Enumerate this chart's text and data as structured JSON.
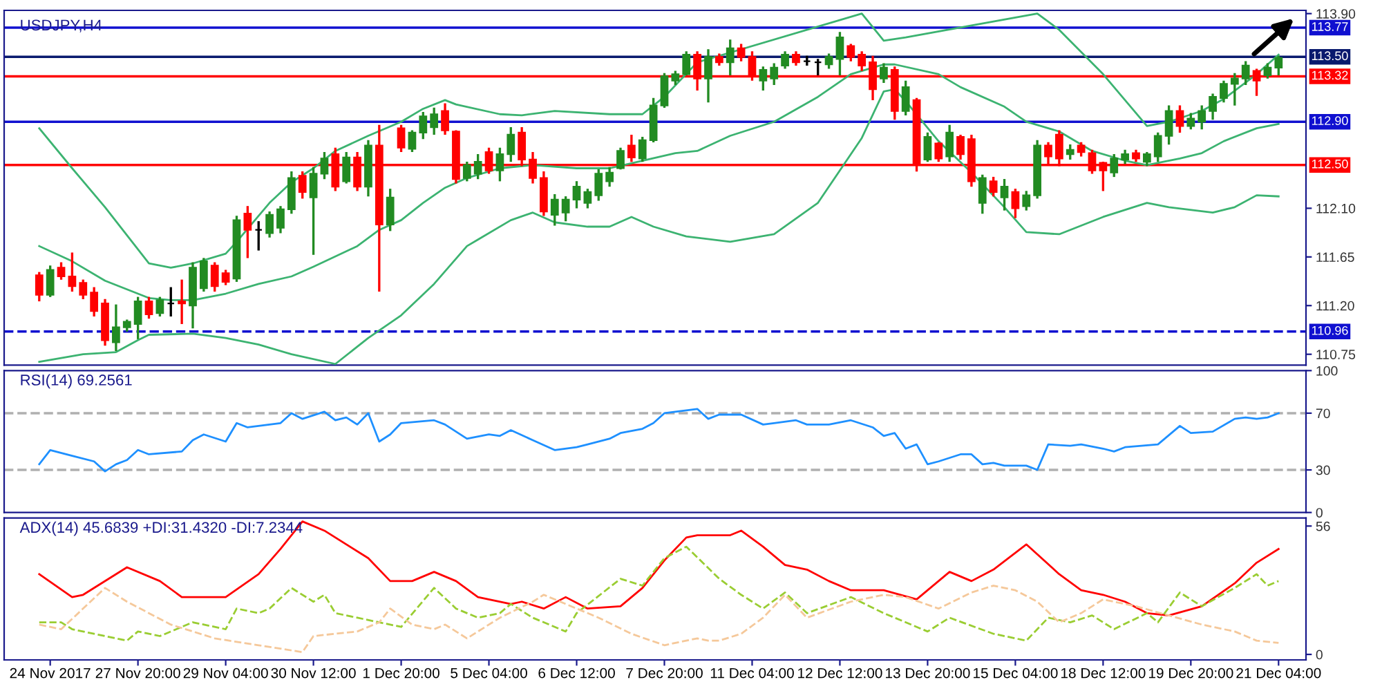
{
  "chart_data": [
    {
      "type": "candlestick",
      "title": "USDJPY,H4",
      "tick_labels": "y",
      "categories": [
        null,
        null,
        null,
        null,
        null,
        null,
        null,
        null,
        null,
        null,
        null,
        null,
        null,
        null,
        null,
        null,
        null,
        null,
        null,
        null,
        null,
        null,
        null,
        null,
        null,
        null,
        null,
        null,
        null,
        null,
        null,
        null,
        null,
        null,
        null,
        null,
        null,
        null,
        null,
        null,
        null,
        null,
        null,
        null,
        null,
        null,
        null,
        null,
        null,
        null,
        null,
        null,
        null,
        null,
        null,
        null,
        null,
        null,
        null,
        null,
        null,
        null,
        null,
        null,
        null,
        null,
        null,
        null,
        null,
        null,
        null,
        null,
        null,
        null,
        null,
        null,
        null,
        null,
        null,
        null,
        null,
        null,
        null,
        null,
        null,
        null,
        null,
        null,
        null,
        null,
        null,
        null,
        null,
        null,
        null,
        null,
        null,
        null,
        null,
        null,
        null,
        null,
        null,
        null,
        null,
        null,
        null,
        null,
        null,
        null,
        null,
        null,
        null,
        null
      ],
      "ohlc": [
        [
          111.48,
          111.5,
          111.25,
          111.3
        ],
        [
          111.3,
          111.56,
          111.29,
          111.53
        ],
        [
          111.55,
          111.59,
          111.45,
          111.47
        ],
        [
          111.47,
          111.68,
          111.34,
          111.38
        ],
        [
          111.41,
          111.43,
          111.27,
          111.3
        ],
        [
          111.32,
          111.36,
          111.11,
          111.15
        ],
        [
          111.22,
          111.25,
          110.84,
          110.88
        ],
        [
          110.86,
          111.2,
          110.79,
          111.0
        ],
        [
          111.0,
          111.06,
          110.97,
          111.05
        ],
        [
          111.03,
          111.27,
          110.9,
          111.24
        ],
        [
          111.24,
          111.27,
          111.09,
          111.12
        ],
        [
          111.13,
          111.27,
          111.11,
          111.25
        ],
        [
          111.22,
          111.36,
          111.11,
          111.22
        ],
        [
          111.24,
          111.43,
          111.04,
          111.22
        ],
        [
          111.2,
          111.59,
          111.0,
          111.55
        ],
        [
          111.36,
          111.63,
          111.34,
          111.61
        ],
        [
          111.57,
          111.59,
          111.34,
          111.38
        ],
        [
          111.5,
          111.52,
          111.4,
          111.42
        ],
        [
          111.45,
          112.02,
          111.43,
          111.99
        ],
        [
          112.05,
          112.11,
          111.65,
          111.9
        ],
        [
          111.9,
          111.97,
          111.72,
          111.9
        ],
        [
          111.87,
          112.06,
          111.84,
          112.04
        ],
        [
          111.92,
          112.11,
          111.88,
          112.09
        ],
        [
          112.09,
          112.43,
          112.06,
          112.38
        ],
        [
          112.4,
          112.43,
          112.2,
          112.25
        ],
        [
          112.2,
          112.47,
          111.68,
          112.42
        ],
        [
          112.42,
          112.61,
          112.38,
          112.56
        ],
        [
          112.6,
          112.65,
          112.27,
          112.3
        ],
        [
          112.35,
          112.61,
          112.34,
          112.57
        ],
        [
          112.57,
          112.61,
          112.27,
          112.3
        ],
        [
          112.3,
          112.72,
          112.22,
          112.68
        ],
        [
          112.68,
          112.86,
          111.34,
          111.95
        ],
        [
          111.95,
          112.27,
          111.9,
          112.2
        ],
        [
          112.84,
          112.86,
          112.63,
          112.66
        ],
        [
          112.65,
          112.81,
          112.63,
          112.8
        ],
        [
          112.8,
          112.98,
          112.75,
          112.95
        ],
        [
          112.85,
          113.02,
          112.79,
          112.97
        ],
        [
          113.0,
          113.06,
          112.79,
          112.82
        ],
        [
          112.81,
          112.81,
          112.34,
          112.37
        ],
        [
          112.38,
          112.52,
          112.36,
          112.5
        ],
        [
          112.42,
          112.59,
          112.38,
          112.53
        ],
        [
          112.62,
          112.65,
          112.43,
          112.45
        ],
        [
          112.45,
          112.65,
          112.36,
          112.6
        ],
        [
          112.6,
          112.84,
          112.54,
          112.78
        ],
        [
          112.8,
          112.84,
          112.5,
          112.55
        ],
        [
          112.55,
          112.61,
          112.34,
          112.38
        ],
        [
          112.38,
          112.43,
          112.04,
          112.07
        ],
        [
          112.04,
          112.22,
          111.95,
          112.18
        ],
        [
          112.06,
          112.2,
          111.99,
          112.18
        ],
        [
          112.18,
          112.34,
          112.11,
          112.3
        ],
        [
          112.15,
          112.27,
          112.11,
          112.25
        ],
        [
          112.22,
          112.45,
          112.18,
          112.42
        ],
        [
          112.35,
          112.47,
          112.31,
          112.43
        ],
        [
          112.47,
          112.65,
          112.47,
          112.63
        ],
        [
          112.68,
          112.77,
          112.54,
          112.57
        ],
        [
          112.56,
          112.75,
          112.54,
          112.73
        ],
        [
          112.73,
          113.11,
          112.72,
          113.05
        ],
        [
          113.05,
          113.34,
          113.04,
          113.32
        ],
        [
          113.28,
          113.36,
          113.25,
          113.34
        ],
        [
          113.34,
          113.54,
          113.34,
          113.52
        ],
        [
          113.52,
          113.54,
          113.2,
          113.3
        ],
        [
          113.3,
          113.56,
          113.09,
          113.5
        ],
        [
          113.5,
          113.52,
          113.43,
          113.45
        ],
        [
          113.45,
          113.65,
          113.34,
          113.58
        ],
        [
          113.58,
          113.61,
          113.47,
          113.5
        ],
        [
          113.5,
          113.54,
          113.29,
          113.32
        ],
        [
          113.28,
          113.4,
          113.2,
          113.38
        ],
        [
          113.3,
          113.43,
          113.25,
          113.4
        ],
        [
          113.42,
          113.54,
          113.4,
          113.52
        ],
        [
          113.52,
          113.54,
          113.43,
          113.45
        ],
        [
          113.46,
          113.5,
          113.43,
          113.46
        ],
        [
          113.45,
          113.47,
          113.34,
          113.45
        ],
        [
          113.43,
          113.52,
          113.4,
          113.5
        ],
        [
          113.48,
          113.72,
          113.34,
          113.68
        ],
        [
          113.6,
          113.61,
          113.47,
          113.5
        ],
        [
          113.52,
          113.54,
          113.38,
          113.42
        ],
        [
          113.45,
          113.5,
          113.11,
          113.2
        ],
        [
          113.3,
          113.43,
          113.27,
          113.4
        ],
        [
          113.38,
          113.4,
          112.93,
          113.0
        ],
        [
          113.0,
          113.27,
          112.97,
          113.22
        ],
        [
          113.1,
          113.11,
          112.45,
          112.5
        ],
        [
          112.55,
          112.79,
          112.54,
          112.76
        ],
        [
          112.7,
          112.7,
          112.54,
          112.56
        ],
        [
          112.58,
          112.86,
          112.54,
          112.8
        ],
        [
          112.76,
          112.77,
          112.56,
          112.6
        ],
        [
          112.74,
          112.77,
          112.31,
          112.35
        ],
        [
          112.15,
          112.4,
          112.06,
          112.38
        ],
        [
          112.35,
          112.38,
          112.22,
          112.25
        ],
        [
          112.2,
          112.36,
          112.09,
          112.3
        ],
        [
          112.25,
          112.27,
          112.02,
          112.1
        ],
        [
          112.12,
          112.25,
          112.09,
          112.22
        ],
        [
          112.22,
          112.72,
          112.2,
          112.68
        ],
        [
          112.68,
          112.7,
          112.52,
          112.58
        ],
        [
          112.78,
          112.81,
          112.5,
          112.56
        ],
        [
          112.6,
          112.68,
          112.56,
          112.64
        ],
        [
          112.68,
          112.7,
          112.59,
          112.62
        ],
        [
          112.61,
          112.63,
          112.43,
          112.45
        ],
        [
          112.52,
          112.52,
          112.27,
          112.45
        ],
        [
          112.43,
          112.59,
          112.4,
          112.56
        ],
        [
          112.55,
          112.63,
          112.52,
          112.6
        ],
        [
          112.61,
          112.63,
          112.54,
          112.56
        ],
        [
          112.53,
          112.61,
          112.5,
          112.6
        ],
        [
          112.58,
          112.79,
          112.54,
          112.77
        ],
        [
          112.77,
          113.04,
          112.7,
          113.0
        ],
        [
          113.0,
          113.04,
          112.81,
          112.86
        ],
        [
          112.86,
          112.97,
          112.84,
          112.93
        ],
        [
          112.9,
          113.04,
          112.84,
          113.0
        ],
        [
          113.0,
          113.15,
          112.93,
          113.13
        ],
        [
          113.12,
          113.27,
          113.09,
          113.25
        ],
        [
          113.25,
          113.34,
          113.06,
          113.3
        ],
        [
          113.3,
          113.45,
          113.25,
          113.42
        ],
        [
          113.37,
          113.38,
          113.15,
          113.28
        ],
        [
          113.33,
          113.43,
          113.31,
          113.4
        ],
        [
          113.4,
          113.5,
          113.34,
          113.49
        ]
      ],
      "colors": [
        "#ff0000",
        "#228b22",
        "#ff0000",
        "#ff0000",
        "#ff0000",
        "#ff0000",
        "#ff0000",
        "#228b22",
        "#228b22",
        "#228b22",
        "#ff0000",
        "#228b22",
        "#000000",
        "#ff0000",
        "#228b22",
        "#228b22",
        "#ff0000",
        "#ff0000",
        "#228b22",
        "#ff0000",
        "#000000",
        "#228b22",
        "#228b22",
        "#228b22",
        "#ff0000",
        "#228b22",
        "#228b22",
        "#ff0000",
        "#228b22",
        "#ff0000",
        "#228b22",
        "#ff0000",
        "#228b22",
        "#ff0000",
        "#228b22",
        "#228b22",
        "#228b22",
        "#ff0000",
        "#ff0000",
        "#228b22",
        "#228b22",
        "#ff0000",
        "#228b22",
        "#228b22",
        "#ff0000",
        "#ff0000",
        "#ff0000",
        "#228b22",
        "#228b22",
        "#228b22",
        "#228b22",
        "#228b22",
        "#228b22",
        "#228b22",
        "#ff0000",
        "#228b22",
        "#228b22",
        "#228b22",
        "#228b22",
        "#228b22",
        "#ff0000",
        "#228b22",
        "#ff0000",
        "#228b22",
        "#ff0000",
        "#ff0000",
        "#228b22",
        "#228b22",
        "#228b22",
        "#ff0000",
        "#000000",
        "#000000",
        "#228b22",
        "#228b22",
        "#ff0000",
        "#ff0000",
        "#ff0000",
        "#228b22",
        "#ff0000",
        "#228b22",
        "#ff0000",
        "#228b22",
        "#ff0000",
        "#228b22",
        "#ff0000",
        "#ff0000",
        "#228b22",
        "#ff0000",
        "#228b22",
        "#ff0000",
        "#228b22",
        "#228b22",
        "#ff0000",
        "#ff0000",
        "#228b22",
        "#ff0000",
        "#ff0000",
        "#ff0000",
        "#228b22",
        "#228b22",
        "#ff0000",
        "#228b22",
        "#228b22",
        "#228b22",
        "#ff0000",
        "#228b22",
        "#228b22",
        "#228b22",
        "#228b22",
        "#228b22",
        "#228b22",
        "#ff0000",
        "#228b22",
        "#228b22"
      ],
      "series": [
        {
          "type": "line",
          "color": "#3cb371",
          "values": [
            112.84,
            null,
            null,
            112.47,
            null,
            null,
            112.11,
            null,
            null,
            null,
            111.59,
            null,
            111.55,
            null,
            111.59,
            null,
            null,
            111.68,
            111.79,
            null,
            null,
            112.15,
            null,
            112.34,
            null,
            112.47,
            null,
            112.63,
            null,
            null,
            112.77,
            null,
            null,
            112.9,
            null,
            113.02,
            null,
            113.1,
            113.06,
            null,
            null,
            null,
            112.97,
            null,
            112.96,
            null,
            null,
            113.0,
            null,
            null,
            null,
            null,
            112.97,
            null,
            null,
            112.97,
            null,
            113.13,
            null,
            null,
            113.45,
            null,
            null,
            null,
            null,
            null,
            null,
            null,
            null,
            null,
            null,
            null,
            null,
            null,
            null,
            113.9,
            null,
            113.65,
            null,
            113.68,
            null,
            null,
            null,
            null,
            null,
            null,
            null,
            null,
            null,
            null,
            null,
            113.9,
            null,
            113.75,
            null,
            null,
            null,
            113.34,
            null,
            null,
            null,
            112.86,
            null,
            112.9,
            null,
            null,
            113.0,
            null,
            113.11,
            null,
            null,
            113.34,
            null,
            113.52
          ]
        },
        {
          "type": "line",
          "color": "#3cb371",
          "values": [
            111.75,
            null,
            null,
            111.61,
            null,
            null,
            111.43,
            null,
            null,
            null,
            111.27,
            null,
            111.25,
            null,
            111.25,
            null,
            null,
            111.31,
            null,
            null,
            111.4,
            null,
            null,
            111.47,
            null,
            111.56,
            null,
            null,
            null,
            111.75,
            null,
            111.9,
            null,
            111.99,
            null,
            112.15,
            null,
            112.29,
            null,
            112.38,
            null,
            null,
            112.47,
            null,
            null,
            112.5,
            null,
            null,
            null,
            112.47,
            null,
            null,
            112.47,
            null,
            null,
            112.54,
            null,
            null,
            112.61,
            null,
            112.63,
            null,
            null,
            112.77,
            null,
            null,
            null,
            112.9,
            null,
            null,
            null,
            113.13,
            null,
            null,
            113.34,
            null,
            null,
            113.43,
            113.43,
            null,
            null,
            null,
            113.34,
            null,
            113.22,
            null,
            null,
            null,
            113.04,
            null,
            112.9,
            null,
            null,
            112.81,
            null,
            null,
            112.63,
            null,
            null,
            112.54,
            null,
            112.5,
            null,
            null,
            112.56,
            null,
            112.61,
            null,
            112.72,
            null,
            null,
            112.84,
            null,
            112.88
          ]
        },
        {
          "type": "line",
          "color": "#3cb371",
          "values": [
            110.68,
            null,
            null,
            null,
            110.75,
            null,
            null,
            110.77,
            null,
            110.88,
            110.93,
            null,
            null,
            null,
            110.94,
            null,
            null,
            110.9,
            null,
            null,
            110.84,
            null,
            null,
            110.75,
            null,
            null,
            null,
            110.66,
            null,
            null,
            110.9,
            null,
            null,
            111.11,
            null,
            null,
            111.4,
            null,
            null,
            111.75,
            111.81,
            null,
            null,
            111.99,
            null,
            112.06,
            null,
            111.97,
            null,
            null,
            111.93,
            null,
            111.93,
            null,
            112.02,
            null,
            111.93,
            null,
            null,
            111.84,
            null,
            null,
            null,
            111.79,
            null,
            null,
            null,
            111.86,
            null,
            null,
            null,
            112.15,
            null,
            null,
            null,
            112.75,
            null,
            113.18,
            113.2,
            113.09,
            null,
            null,
            112.72,
            null,
            null,
            112.43,
            null,
            null,
            112.11,
            null,
            111.88,
            null,
            null,
            111.86,
            null,
            null,
            null,
            112.02,
            null,
            null,
            null,
            112.15,
            null,
            112.11,
            null,
            null,
            null,
            112.06,
            null,
            112.11,
            null,
            112.22,
            null,
            112.21
          ]
        }
      ],
      "ylim": [
        110.65,
        113.93
      ],
      "yticks": [
        110.75,
        {
          "value": 111.2,
          "label": "111.20"
        },
        111.65,
        {
          "value": 112.1,
          "label": "112.10"
        },
        {
          "value": 113.9,
          "label": "113.90"
        }
      ],
      "ref_lines": [
        {
          "axis": "y",
          "value": 113.77,
          "label": "113.77",
          "color": "#1010d0",
          "line_style": "solid"
        },
        {
          "axis": "y",
          "value": 113.5,
          "label": "113.50",
          "color": "#0a1a6e",
          "line_style": "solid"
        },
        {
          "axis": "y",
          "value": 113.32,
          "label": "113.32",
          "color": "#ff0000",
          "line_style": "solid"
        },
        {
          "axis": "y",
          "value": 112.9,
          "label": "112.90",
          "color": "#1010d0",
          "line_style": "solid"
        },
        {
          "axis": "y",
          "value": 112.5,
          "label": "112.50",
          "color": "#ff0000",
          "line_style": "solid"
        },
        {
          "axis": "y",
          "value": 110.96,
          "label": "110.96",
          "color": "#1010d0",
          "line_style": "dashed"
        }
      ]
    },
    {
      "type": "line",
      "title": "RSI(14) 69.2561",
      "tick_labels": "y",
      "categories": [
        null,
        null,
        null,
        null,
        null,
        null,
        null,
        null,
        null,
        null,
        null,
        null,
        null,
        null,
        null,
        null,
        null,
        null,
        null,
        null,
        null,
        null,
        null,
        null,
        null,
        null,
        null,
        null,
        null,
        null,
        null,
        null,
        null,
        null,
        null,
        null,
        null,
        null,
        null,
        null,
        null,
        null,
        null,
        null,
        null,
        null,
        null,
        null,
        null,
        null,
        null,
        null,
        null,
        null,
        null,
        null,
        null,
        null,
        null,
        null,
        null,
        null,
        null,
        null,
        null,
        null,
        null,
        null,
        null,
        null,
        null,
        null,
        null,
        null,
        null,
        null,
        null,
        null,
        null,
        null,
        null,
        null,
        null,
        null,
        null,
        null,
        null,
        null,
        null,
        null,
        null,
        null,
        null,
        null,
        null,
        null,
        null,
        null,
        null,
        null,
        null,
        null,
        null,
        null,
        null,
        null,
        null,
        null,
        null,
        null,
        null,
        null,
        null,
        null
      ],
      "series": [
        {
          "color": "#1e90ff",
          "values": [
            34,
            44,
            null,
            40,
            null,
            36,
            29,
            34,
            37,
            44,
            41,
            null,
            null,
            43,
            51,
            55,
            null,
            50,
            63,
            60,
            null,
            null,
            63,
            70,
            66,
            null,
            71,
            65,
            67,
            62,
            70,
            50,
            55,
            63,
            null,
            null,
            65,
            62,
            null,
            52,
            null,
            55,
            54,
            58,
            null,
            51,
            null,
            44,
            null,
            46,
            48,
            null,
            52,
            56,
            null,
            59,
            63,
            70,
            null,
            null,
            73,
            66,
            69,
            null,
            69,
            null,
            62,
            63,
            null,
            65,
            62,
            null,
            62,
            null,
            65,
            null,
            60,
            54,
            56,
            45,
            48,
            34,
            36,
            null,
            41,
            41,
            34,
            35,
            33,
            null,
            33,
            30,
            48,
            null,
            47,
            48,
            null,
            45,
            43,
            46,
            null,
            null,
            48,
            null,
            61,
            56,
            null,
            57,
            null,
            66,
            67,
            66,
            67,
            70
          ]
        }
      ],
      "ylim": [
        0,
        100
      ],
      "yticks": [
        0,
        30,
        70,
        100
      ],
      "ref_lines": [
        {
          "axis": "y",
          "value": 70,
          "color": "#b0b0b0",
          "line_style": "dashed"
        },
        {
          "axis": "y",
          "value": 30,
          "color": "#b0b0b0",
          "line_style": "dashed"
        }
      ]
    },
    {
      "type": "line",
      "title": "ADX(14) 45.6839 +DI:31.4320 -DI:7.2344",
      "categories": [
        null,
        "24 Nov 2017",
        null,
        null,
        null,
        null,
        null,
        null,
        null,
        "27 Nov 20:00",
        null,
        null,
        null,
        null,
        null,
        null,
        null,
        "29 Nov 04:00",
        null,
        null,
        null,
        null,
        null,
        null,
        null,
        "30 Nov 12:00",
        null,
        null,
        null,
        null,
        null,
        null,
        null,
        "1 Dec 20:00",
        null,
        null,
        null,
        null,
        null,
        null,
        null,
        "5 Dec 04:00",
        null,
        null,
        null,
        null,
        null,
        null,
        null,
        "6 Dec 12:00",
        null,
        null,
        null,
        null,
        null,
        null,
        null,
        "7 Dec 20:00",
        null,
        null,
        null,
        null,
        null,
        null,
        null,
        "11 Dec 04:00",
        null,
        null,
        null,
        null,
        null,
        null,
        null,
        "12 Dec 12:00",
        null,
        null,
        null,
        null,
        null,
        null,
        null,
        "13 Dec 20:00",
        null,
        null,
        null,
        null,
        null,
        null,
        null,
        "15 Dec 04:00",
        null,
        null,
        null,
        null,
        null,
        null,
        null,
        "18 Dec 12:00",
        null,
        null,
        null,
        null,
        null,
        null,
        null,
        "19 Dec 20:00",
        null,
        null,
        null,
        null,
        null,
        null,
        null,
        "21 Dec 04:00"
      ],
      "series": [
        {
          "color": "#ff0000",
          "line_style": "solid",
          "values": [
            35,
            null,
            null,
            25,
            26,
            null,
            null,
            null,
            38,
            null,
            null,
            32,
            null,
            25,
            null,
            null,
            null,
            25,
            null,
            null,
            35,
            null,
            46,
            null,
            58,
            null,
            54,
            null,
            null,
            null,
            42,
            null,
            32,
            null,
            32,
            null,
            36,
            null,
            32,
            null,
            25,
            null,
            null,
            22,
            23,
            null,
            20,
            null,
            25,
            null,
            20,
            null,
            null,
            21,
            null,
            29,
            null,
            41,
            null,
            51,
            52,
            null,
            null,
            52,
            54,
            null,
            47,
            null,
            39,
            null,
            37,
            null,
            32,
            null,
            28,
            null,
            null,
            28,
            null,
            null,
            24,
            null,
            null,
            36,
            null,
            32,
            null,
            37,
            null,
            null,
            48,
            null,
            null,
            35,
            null,
            28,
            null,
            26,
            null,
            23,
            null,
            18,
            null,
            17,
            null,
            null,
            21,
            null,
            null,
            31,
            null,
            40,
            null,
            46
          ]
        },
        {
          "color": "#9acd32",
          "line_style": "dashed",
          "values": [
            14,
            null,
            14,
            11,
            null,
            null,
            null,
            null,
            6,
            10,
            null,
            8,
            null,
            null,
            14,
            null,
            null,
            11,
            20,
            null,
            18,
            20,
            null,
            29,
            null,
            23,
            26,
            18,
            null,
            16,
            null,
            null,
            null,
            12,
            null,
            null,
            29,
            null,
            20,
            null,
            16,
            null,
            18,
            22,
            null,
            16,
            null,
            null,
            10,
            18,
            null,
            null,
            null,
            33,
            null,
            30,
            null,
            42,
            null,
            47,
            null,
            null,
            33,
            null,
            26,
            null,
            20,
            null,
            27,
            null,
            18,
            null,
            null,
            null,
            25,
            null,
            null,
            18,
            null,
            null,
            null,
            10,
            null,
            16,
            null,
            null,
            null,
            9,
            null,
            null,
            6,
            null,
            16,
            null,
            14,
            null,
            17,
            null,
            11,
            null,
            null,
            18,
            14,
            null,
            27,
            null,
            21,
            null,
            null,
            29,
            null,
            35,
            30,
            32
          ]
        },
        {
          "color": "#f5c89a",
          "line_style": "dashed",
          "values": [
            13,
            null,
            11,
            null,
            null,
            null,
            29,
            null,
            23,
            null,
            null,
            null,
            13,
            null,
            null,
            null,
            7,
            null,
            null,
            null,
            4,
            null,
            null,
            null,
            1,
            8,
            null,
            9,
            null,
            10,
            null,
            14,
            20,
            null,
            13,
            null,
            11,
            13,
            null,
            7,
            null,
            null,
            16,
            null,
            null,
            23,
            26,
            null,
            22,
            null,
            null,
            16,
            null,
            null,
            9,
            null,
            null,
            4,
            null,
            null,
            7,
            6,
            6,
            null,
            9,
            null,
            16,
            null,
            26,
            null,
            16,
            null,
            null,
            null,
            23,
            null,
            null,
            26,
            null,
            25,
            null,
            null,
            20,
            null,
            null,
            27,
            null,
            30,
            null,
            28,
            null,
            23,
            null,
            14,
            null,
            18,
            null,
            24,
            null,
            null,
            21,
            null,
            null,
            17,
            null,
            null,
            13,
            null,
            null,
            10,
            null,
            6,
            null,
            5
          ]
        }
      ],
      "ylim": [
        -2.4,
        59.5
      ],
      "yticks": [
        0,
        56
      ]
    }
  ]
}
